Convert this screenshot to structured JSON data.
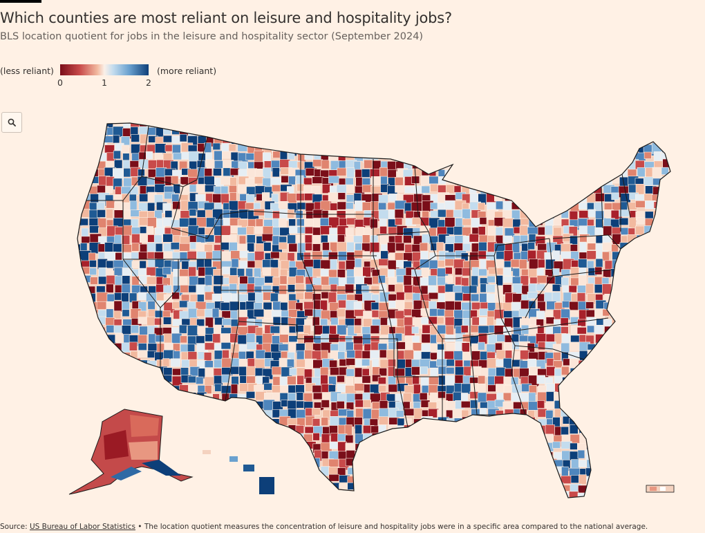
{
  "title": "Which counties are most reliant on leisure and hospitality jobs?",
  "subtitle": "BLS location quotient for jobs in the leisure and hospitality sector (September 2024)",
  "legend": {
    "left_label": "(less reliant)",
    "right_label": "(more reliant)",
    "ticks": [
      "0",
      "1",
      "2"
    ],
    "scale": {
      "min": 0,
      "mid": 1,
      "max": 2
    },
    "colors": {
      "low": "#7a0e19",
      "mid": "#fbf0e8",
      "high": "#0d3f79"
    }
  },
  "zoom_button": {
    "icon": "search-icon"
  },
  "source": {
    "prefix": "Source: ",
    "link_text": "US Bureau of Labor Statistics",
    "suffix": " • The location quotient measures the concentration of leisure and hospitality jobs were in a specific area compared to the national average."
  },
  "map": {
    "type": "choropleth",
    "geography": "US counties",
    "colors": {
      "state_border": "#1a1a1a",
      "county_border": "#fff1e5"
    }
  }
}
